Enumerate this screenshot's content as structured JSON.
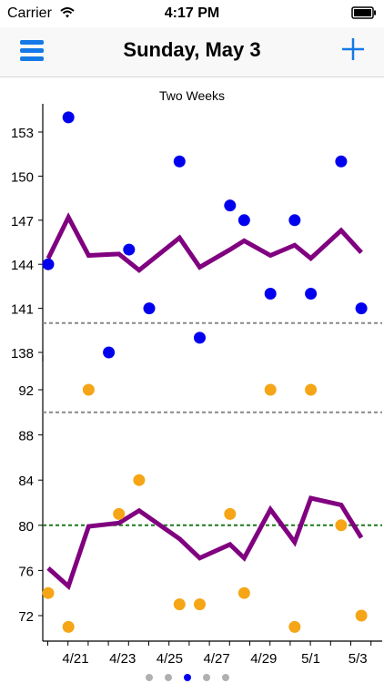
{
  "status_bar": {
    "carrier": "Carrier",
    "time": "4:17 PM"
  },
  "nav": {
    "title": "Sunday, May 3",
    "menu_icon": "hamburger-icon",
    "add_icon": "plus-icon"
  },
  "colors": {
    "accent": "#1479e6",
    "weight_points": "#0000ee",
    "pulse_points": "#f5a516",
    "trend": "#800080",
    "threshold_gray": "#888888",
    "threshold_green": "#1a7a1a"
  },
  "pager": {
    "count": 5,
    "active": 2,
    "active_color": "#0000ee",
    "inactive_color": "#b0b0b0"
  },
  "chart_data": [
    {
      "type": "scatter",
      "title": "Two Weeks",
      "xlabel": "",
      "ylabel": "",
      "ylim": [
        136,
        156
      ],
      "yticks": [
        153,
        150,
        147,
        144,
        141,
        138
      ],
      "points": [
        [
          0,
          144
        ],
        [
          1,
          154
        ],
        [
          3,
          138
        ],
        [
          4,
          145
        ],
        [
          5,
          141
        ],
        [
          6.5,
          151
        ],
        [
          7.5,
          139
        ],
        [
          9,
          148
        ],
        [
          9.7,
          147
        ],
        [
          11,
          142
        ],
        [
          12.2,
          147
        ],
        [
          13,
          142
        ],
        [
          14.5,
          151
        ],
        [
          15.5,
          141
        ]
      ],
      "trend": [
        [
          0,
          144.4
        ],
        [
          1,
          147.2
        ],
        [
          2,
          144.6
        ],
        [
          3.5,
          144.7
        ],
        [
          4.5,
          143.6
        ],
        [
          6.5,
          145.8
        ],
        [
          7.5,
          143.8
        ],
        [
          9,
          145
        ],
        [
          9.7,
          145.6
        ],
        [
          11,
          144.6
        ],
        [
          12.2,
          145.3
        ],
        [
          13,
          144.4
        ],
        [
          14.5,
          146.3
        ],
        [
          15.5,
          144.8
        ]
      ],
      "threshold": {
        "value": 140,
        "style": "dashed",
        "color": "gray"
      }
    },
    {
      "type": "scatter",
      "title": "",
      "xlabel": "",
      "ylabel": "",
      "ylim": [
        70,
        93
      ],
      "yticks": [
        92,
        88,
        84,
        80,
        76,
        72
      ],
      "points": [
        [
          0,
          74
        ],
        [
          1,
          71
        ],
        [
          2,
          92
        ],
        [
          3.5,
          81
        ],
        [
          4.5,
          84
        ],
        [
          6.5,
          73
        ],
        [
          7.5,
          73
        ],
        [
          9,
          81
        ],
        [
          9.7,
          74
        ],
        [
          11,
          92
        ],
        [
          12.2,
          71
        ],
        [
          13,
          92
        ],
        [
          14.5,
          80
        ],
        [
          15.5,
          72
        ]
      ],
      "trend": [
        [
          0,
          76.2
        ],
        [
          1,
          74.6
        ],
        [
          2,
          79.9
        ],
        [
          3.5,
          80.2
        ],
        [
          4.5,
          81.3
        ],
        [
          6.5,
          78.8
        ],
        [
          7.5,
          77.1
        ],
        [
          9,
          78.3
        ],
        [
          9.7,
          77.1
        ],
        [
          11,
          81.4
        ],
        [
          12.2,
          78.5
        ],
        [
          13,
          82.4
        ],
        [
          14.5,
          81.8
        ],
        [
          15.5,
          78.9
        ]
      ],
      "thresholds": [
        {
          "value": 90,
          "style": "dashed",
          "color": "gray"
        },
        {
          "value": 80,
          "style": "dashed",
          "color": "green"
        }
      ],
      "x_tick_labels": [
        "4/21",
        "4/23",
        "4/25",
        "4/27",
        "4/29",
        "5/1",
        "5/3"
      ],
      "x_tick_positions": [
        1.5,
        3.5,
        5.5,
        7.5,
        9.5,
        11.5,
        13.5
      ]
    }
  ]
}
